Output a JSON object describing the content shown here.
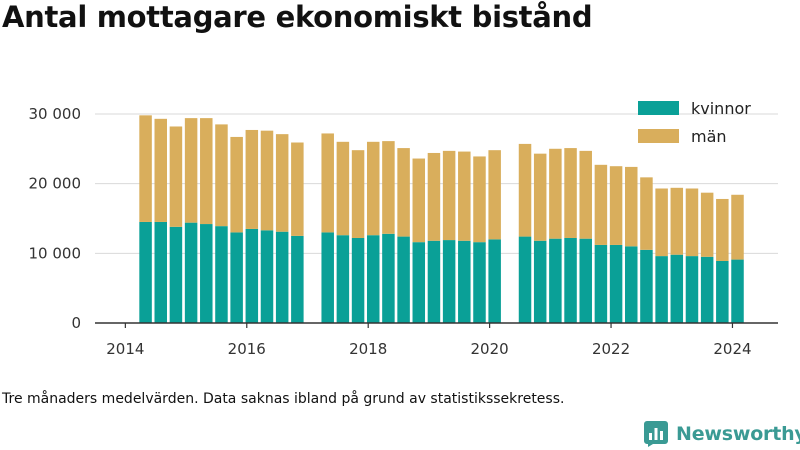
{
  "header": {
    "title": "Antal mottagare ekonomiskt bistånd"
  },
  "footer": {
    "caption": "Tre månaders medelvärden. Data saknas ibland på grund av statistikssekretess.",
    "brand": "Newsworthy"
  },
  "colors": {
    "kvinnor": "#0aa097",
    "man": "#d9ae5c",
    "grid": "#d9d9d9",
    "axis": "#333333",
    "brand": "#3a9a94"
  },
  "icons": {
    "brand": "newsworthy-logo-icon"
  },
  "chart_data": {
    "type": "bar",
    "stacked": true,
    "title": "Antal mottagare ekonomiskt bistånd",
    "xlabel": "",
    "ylabel": "",
    "ylim": [
      0,
      32000
    ],
    "xlim": [
      2013.5,
      2024.75
    ],
    "yticks": [
      0,
      10000,
      20000,
      30000
    ],
    "ytick_labels": [
      "0",
      "10 000",
      "20 000",
      "30 000"
    ],
    "xticks": [
      2014,
      2016,
      2018,
      2020,
      2022,
      2024
    ],
    "xtick_labels": [
      "2014",
      "2016",
      "2018",
      "2020",
      "2022",
      "2024"
    ],
    "grid": true,
    "legend_position": "top-right",
    "x": [
      2014.333,
      2014.583,
      2014.833,
      2015.083,
      2015.333,
      2015.583,
      2015.833,
      2016.083,
      2016.333,
      2016.583,
      2016.833,
      2017.333,
      2017.583,
      2017.833,
      2018.083,
      2018.333,
      2018.583,
      2018.833,
      2019.083,
      2019.333,
      2019.583,
      2019.833,
      2020.083,
      2020.583,
      2020.833,
      2021.083,
      2021.333,
      2021.583,
      2021.833,
      2022.083,
      2022.333,
      2022.583,
      2022.833,
      2023.083,
      2023.333,
      2023.583,
      2023.833,
      2024.083
    ],
    "series": [
      {
        "name": "kvinnor",
        "values": [
          14500,
          14500,
          13800,
          14400,
          14200,
          13900,
          13000,
          13500,
          13300,
          13100,
          12500,
          13000,
          12600,
          12200,
          12600,
          12800,
          12400,
          11600,
          11800,
          11900,
          11800,
          11600,
          12000,
          12400,
          11800,
          12100,
          12200,
          12100,
          11200,
          11200,
          11000,
          10500,
          9600,
          9800,
          9600,
          9500,
          8900,
          9100
        ]
      },
      {
        "name": "män",
        "values": [
          15300,
          14800,
          14400,
          15000,
          15200,
          14600,
          13700,
          14200,
          14300,
          14000,
          13400,
          14200,
          13400,
          12600,
          13400,
          13300,
          12700,
          12000,
          12600,
          12800,
          12800,
          12300,
          12800,
          13300,
          12500,
          12900,
          12900,
          12600,
          11500,
          11300,
          11400,
          10400,
          9700,
          9600,
          9700,
          9200,
          8900,
          9300
        ]
      }
    ]
  }
}
